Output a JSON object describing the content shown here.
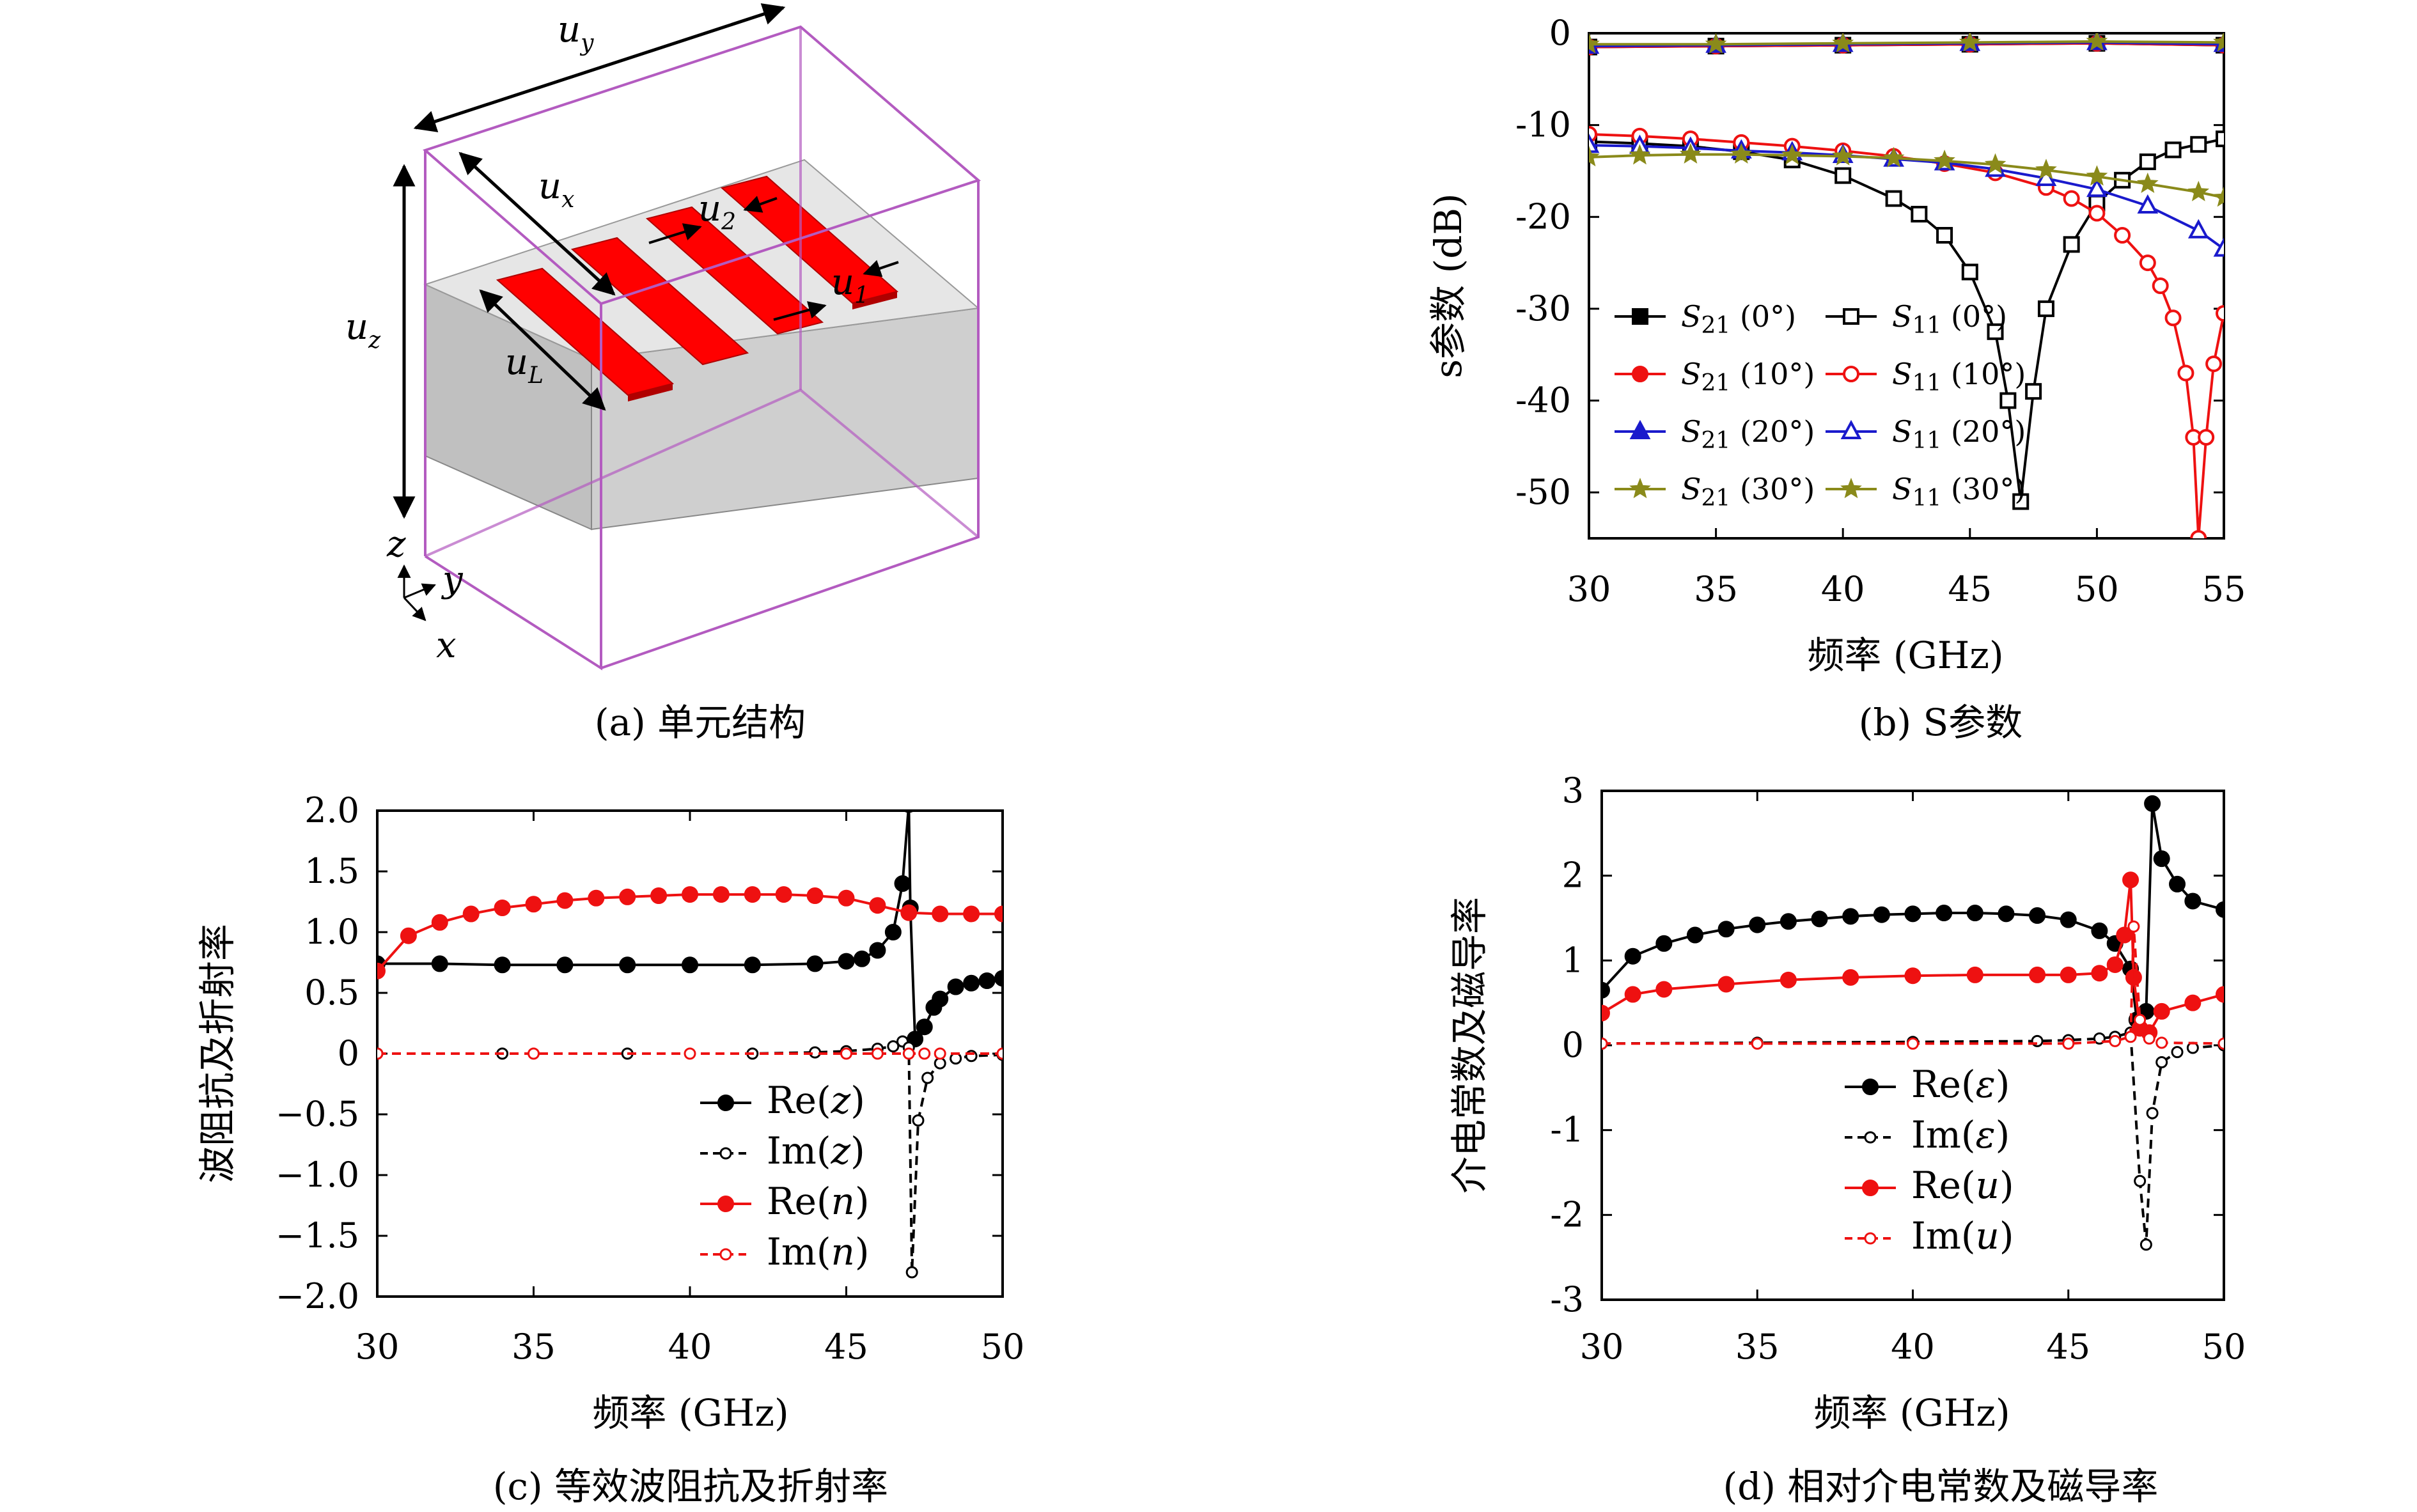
{
  "captions": {
    "a": "(a) 单元结构",
    "b": "(b) S参数",
    "c": "(c) 等效波阻抗及折射率",
    "d": "(d) 相对介电常数及磁导率"
  },
  "diagram": {
    "labels": {
      "uy": "u",
      "uy_sub": "y",
      "ux": "u",
      "ux_sub": "x",
      "uz": "u",
      "uz_sub": "z",
      "u2": "u",
      "u2_sub": "2",
      "u1": "u",
      "u1_sub": "1",
      "uL": "u",
      "uL_sub": "L",
      "axis_z": "z",
      "axis_y": "y",
      "axis_x": "x"
    },
    "colors": {
      "box": "#b35bc0",
      "strip": "#ff0000",
      "substrate_top": "#e6e6e6",
      "substrate_side": "#c0c0c0"
    }
  },
  "chart_data": [
    {
      "id": "b",
      "type": "line",
      "xlabel": "频率 (GHz)",
      "ylabel": "s参数 (dB)",
      "xlim": [
        30,
        55
      ],
      "ylim": [
        -55,
        0
      ],
      "xticks": [
        "30",
        "35",
        "40",
        "45",
        "50",
        "55"
      ],
      "yticks": [
        "0",
        "-10",
        "-20",
        "-30",
        "-40",
        "-50"
      ],
      "legend_position": "bottom-left",
      "series": [
        {
          "name": "S21 (0°)",
          "legend_main": "S",
          "legend_sub": "21",
          "legend_rest": " (0°)",
          "color": "#000000",
          "marker": "square",
          "filled": true,
          "x": [
            30,
            35,
            40,
            45,
            50,
            55
          ],
          "y": [
            -1.5,
            -1.4,
            -1.3,
            -1.2,
            -1.1,
            -1.3
          ]
        },
        {
          "name": "S11 (0°)",
          "legend_main": "S",
          "legend_sub": "11",
          "legend_rest": " (0°)",
          "color": "#000000",
          "marker": "square",
          "filled": false,
          "x": [
            30,
            32,
            34,
            36,
            38,
            40,
            42,
            43,
            44,
            45,
            46,
            46.5,
            47,
            47.5,
            48,
            49,
            50,
            51,
            52,
            53,
            54,
            55
          ],
          "y": [
            -11.8,
            -12.0,
            -12.3,
            -12.9,
            -13.8,
            -15.5,
            -18.0,
            -19.7,
            -22.0,
            -26.0,
            -32.5,
            -40.0,
            -51.0,
            -39.0,
            -30.0,
            -23.0,
            -18.5,
            -16.0,
            -14.0,
            -12.7,
            -12.1,
            -11.5
          ]
        },
        {
          "name": "S21 (10°)",
          "legend_main": "S",
          "legend_sub": "21",
          "legend_rest": " (10°)",
          "color": "#ee1111",
          "marker": "circle",
          "filled": true,
          "x": [
            30,
            35,
            40,
            45,
            50,
            55
          ],
          "y": [
            -1.5,
            -1.4,
            -1.3,
            -1.2,
            -1.1,
            -1.3
          ]
        },
        {
          "name": "S11 (10°)",
          "legend_main": "S",
          "legend_sub": "11",
          "legend_rest": " (10°)",
          "color": "#ee1111",
          "marker": "circle",
          "filled": false,
          "x": [
            30,
            32,
            34,
            36,
            38,
            40,
            42,
            44,
            46,
            48,
            49,
            50,
            51,
            52,
            52.5,
            53,
            53.5,
            53.8,
            54,
            54.3,
            54.6,
            55
          ],
          "y": [
            -11.0,
            -11.2,
            -11.5,
            -11.9,
            -12.3,
            -12.8,
            -13.4,
            -14.2,
            -15.2,
            -16.8,
            -18.0,
            -19.6,
            -22.0,
            -25.0,
            -27.5,
            -31.0,
            -37.0,
            -44.0,
            -55.0,
            -44.0,
            -36.0,
            -30.5
          ]
        },
        {
          "name": "S21 (20°)",
          "legend_main": "S",
          "legend_sub": "21",
          "legend_rest": " (20°)",
          "color": "#1a1acc",
          "marker": "triangle",
          "filled": true,
          "x": [
            30,
            35,
            40,
            45,
            50,
            55
          ],
          "y": [
            -1.4,
            -1.3,
            -1.2,
            -1.1,
            -1.0,
            -1.2
          ]
        },
        {
          "name": "S11 (20°)",
          "legend_main": "S",
          "legend_sub": "11",
          "legend_rest": " (20°)",
          "color": "#1a1acc",
          "marker": "triangle",
          "filled": false,
          "x": [
            30,
            32,
            34,
            36,
            38,
            40,
            42,
            44,
            46,
            48,
            50,
            52,
            54,
            55
          ],
          "y": [
            -12.2,
            -12.3,
            -12.5,
            -12.8,
            -13.0,
            -13.3,
            -13.7,
            -14.1,
            -14.8,
            -15.8,
            -17.0,
            -18.8,
            -21.5,
            -23.5
          ]
        },
        {
          "name": "S21 (30°)",
          "legend_main": "S",
          "legend_sub": "21",
          "legend_rest": " (30°)",
          "color": "#8a8a1a",
          "marker": "star",
          "filled": true,
          "x": [
            30,
            35,
            40,
            45,
            50,
            55
          ],
          "y": [
            -1.2,
            -1.2,
            -1.1,
            -1.0,
            -0.9,
            -1.0
          ]
        },
        {
          "name": "S11 (30°)",
          "legend_main": "S",
          "legend_sub": "11",
          "legend_rest": " (30°)",
          "color": "#8a8a1a",
          "marker": "star",
          "filled": false,
          "x": [
            30,
            32,
            34,
            36,
            38,
            40,
            42,
            44,
            46,
            48,
            50,
            52,
            54,
            55
          ],
          "y": [
            -13.5,
            -13.3,
            -13.2,
            -13.2,
            -13.3,
            -13.4,
            -13.6,
            -13.9,
            -14.3,
            -14.9,
            -15.6,
            -16.4,
            -17.3,
            -17.9
          ]
        }
      ]
    },
    {
      "id": "c",
      "type": "line",
      "xlabel": "频率 (GHz)",
      "ylabel": "波阻抗及折射率",
      "xlim": [
        30,
        50
      ],
      "ylim": [
        -2.0,
        2.0
      ],
      "xticks": [
        "30",
        "35",
        "40",
        "45",
        "50"
      ],
      "yticks": [
        "2.0",
        "1.5",
        "1.0",
        "0.5",
        "0",
        "−0.5",
        "−1.0",
        "−1.5",
        "−2.0"
      ],
      "legend_position": "bottom-center",
      "series": [
        {
          "name": "Re(z)",
          "legend_main": "Re(",
          "legend_var": "z",
          "legend_close": ")",
          "color": "#000000",
          "dash": false,
          "marker": "circle",
          "filled": true,
          "x": [
            30,
            32,
            34,
            36,
            38,
            40,
            42,
            44,
            45,
            45.5,
            46,
            46.5,
            46.8,
            47,
            47.05,
            47.2,
            47.5,
            47.8,
            48,
            48.5,
            49,
            49.5,
            50
          ],
          "y": [
            0.74,
            0.74,
            0.73,
            0.73,
            0.73,
            0.73,
            0.73,
            0.74,
            0.76,
            0.78,
            0.85,
            1.0,
            1.4,
            2.05,
            1.2,
            0.12,
            0.22,
            0.38,
            0.45,
            0.55,
            0.58,
            0.6,
            0.62
          ]
        },
        {
          "name": "Im(z)",
          "legend_main": "Im(",
          "legend_var": "z",
          "legend_close": ")",
          "color": "#000000",
          "dash": true,
          "marker": "circle",
          "filled": false,
          "x": [
            30,
            34,
            38,
            42,
            44,
            45,
            46,
            46.5,
            46.8,
            47,
            47.1,
            47.3,
            47.6,
            48,
            48.5,
            49,
            50
          ],
          "y": [
            0.0,
            0.0,
            0.0,
            0.0,
            0.01,
            0.02,
            0.04,
            0.06,
            0.1,
            0.05,
            -1.8,
            -0.55,
            -0.2,
            -0.08,
            -0.04,
            -0.02,
            -0.01
          ]
        },
        {
          "name": "Re(n)",
          "legend_main": "Re(",
          "legend_var": "n",
          "legend_close": ")",
          "color": "#ee1111",
          "dash": false,
          "marker": "circle",
          "filled": true,
          "x": [
            30,
            31,
            32,
            33,
            34,
            35,
            36,
            37,
            38,
            39,
            40,
            41,
            42,
            43,
            44,
            45,
            46,
            47,
            48,
            49,
            50
          ],
          "y": [
            0.68,
            0.97,
            1.08,
            1.15,
            1.2,
            1.23,
            1.26,
            1.28,
            1.29,
            1.3,
            1.31,
            1.31,
            1.31,
            1.31,
            1.3,
            1.28,
            1.22,
            1.16,
            1.15,
            1.15,
            1.15
          ]
        },
        {
          "name": "Im(n)",
          "legend_main": "Im(",
          "legend_var": "n",
          "legend_close": ")",
          "color": "#ee1111",
          "dash": true,
          "marker": "circle",
          "filled": false,
          "x": [
            30,
            35,
            40,
            45,
            46,
            47,
            47.5,
            48,
            50
          ],
          "y": [
            0.0,
            0.0,
            0.0,
            0.0,
            0.0,
            0.0,
            0.0,
            0.0,
            0.0
          ]
        }
      ]
    },
    {
      "id": "d",
      "type": "line",
      "xlabel": "频率 (GHz)",
      "ylabel": "介电常数及磁导率",
      "xlim": [
        30,
        50
      ],
      "ylim": [
        -3,
        3
      ],
      "xticks": [
        "30",
        "35",
        "40",
        "45",
        "50"
      ],
      "yticks": [
        "3",
        "2",
        "1",
        "0",
        "-1",
        "-2",
        "-3"
      ],
      "legend_position": "bottom-center",
      "series": [
        {
          "name": "Re(ε)",
          "legend_main": "Re(",
          "legend_var": "ε",
          "legend_close": ")",
          "color": "#000000",
          "dash": false,
          "marker": "circle",
          "filled": true,
          "x": [
            30,
            31,
            32,
            33,
            34,
            35,
            36,
            37,
            38,
            39,
            40,
            41,
            42,
            43,
            44,
            45,
            46,
            46.5,
            47,
            47.2,
            47.5,
            47.7,
            48,
            48.5,
            49,
            50
          ],
          "y": [
            0.65,
            1.05,
            1.2,
            1.3,
            1.37,
            1.42,
            1.46,
            1.49,
            1.52,
            1.54,
            1.55,
            1.56,
            1.56,
            1.55,
            1.53,
            1.48,
            1.35,
            1.2,
            0.9,
            0.3,
            0.4,
            2.85,
            2.2,
            1.9,
            1.7,
            1.6
          ]
        },
        {
          "name": "Im(ε)",
          "legend_main": "Im(",
          "legend_var": "ε",
          "legend_close": ")",
          "color": "#000000",
          "dash": true,
          "marker": "circle",
          "filled": false,
          "x": [
            30,
            35,
            40,
            44,
            45,
            46,
            46.5,
            47,
            47.3,
            47.5,
            47.7,
            48,
            48.5,
            49,
            50
          ],
          "y": [
            0.02,
            0.03,
            0.04,
            0.05,
            0.06,
            0.08,
            0.1,
            0.15,
            -1.6,
            -2.35,
            -0.8,
            -0.2,
            -0.08,
            -0.03,
            0.0
          ]
        },
        {
          "name": "Re(u)",
          "legend_main": "Re(",
          "legend_var": "u",
          "legend_close": ")",
          "color": "#ee1111",
          "dash": false,
          "marker": "circle",
          "filled": true,
          "x": [
            30,
            31,
            32,
            34,
            36,
            38,
            40,
            42,
            44,
            45,
            46,
            46.5,
            46.8,
            47,
            47.1,
            47.3,
            47.6,
            48,
            49,
            50
          ],
          "y": [
            0.38,
            0.6,
            0.66,
            0.72,
            0.77,
            0.8,
            0.82,
            0.83,
            0.83,
            0.83,
            0.85,
            0.95,
            1.3,
            1.95,
            0.8,
            0.2,
            0.15,
            0.4,
            0.5,
            0.6
          ]
        },
        {
          "name": "Im(u)",
          "legend_main": "Im(",
          "legend_var": "u",
          "legend_close": ")",
          "color": "#ee1111",
          "dash": true,
          "marker": "circle",
          "filled": false,
          "x": [
            30,
            35,
            40,
            45,
            46.5,
            47,
            47.1,
            47.3,
            47.6,
            48,
            50
          ],
          "y": [
            0.02,
            0.02,
            0.02,
            0.02,
            0.05,
            0.1,
            1.4,
            0.3,
            0.08,
            0.03,
            0.02
          ]
        }
      ]
    }
  ]
}
